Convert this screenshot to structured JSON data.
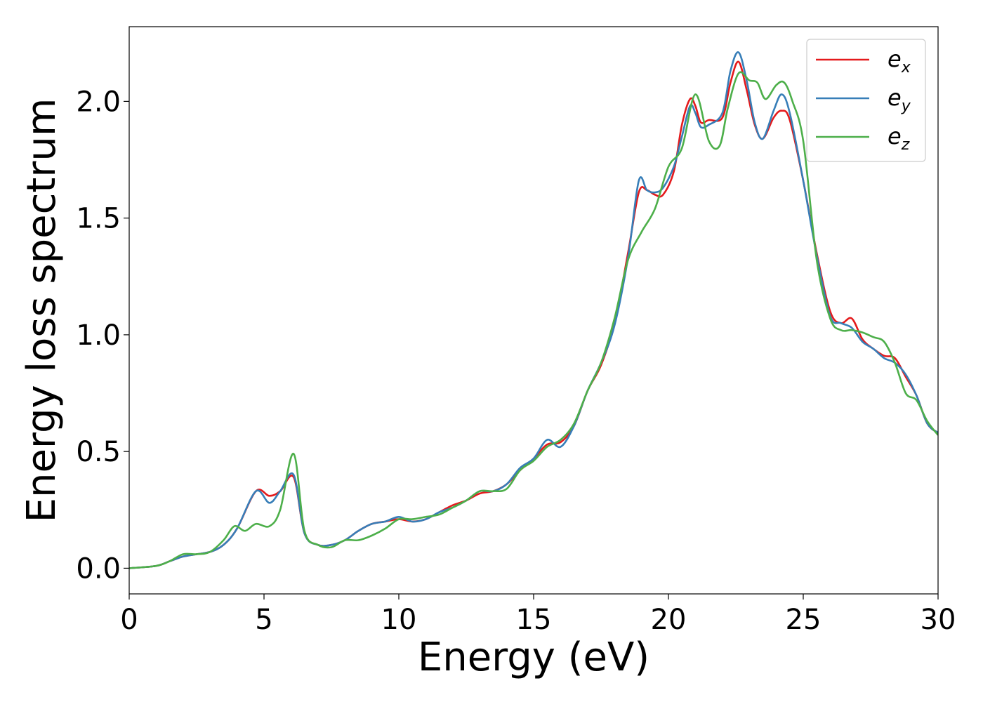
{
  "chart_data": {
    "type": "line",
    "title": "",
    "xlabel": "Energy (eV)",
    "ylabel": "Energy loss spectrum",
    "xlim": [
      0,
      30
    ],
    "ylim": [
      -0.11,
      2.32
    ],
    "xticks": [
      0,
      5,
      10,
      15,
      20,
      25,
      30
    ],
    "xtick_labels": [
      "0",
      "5",
      "10",
      "15",
      "20",
      "25",
      "30"
    ],
    "yticks": [
      0.0,
      0.5,
      1.0,
      1.5,
      2.0
    ],
    "ytick_labels": [
      "0.0",
      "0.5",
      "1.0",
      "1.5",
      "2.0"
    ],
    "grid": false,
    "legend_position": "top-right",
    "series": [
      {
        "name": "e_x",
        "label_base": "e",
        "label_sub": "x",
        "color": "#e41a1c",
        "x": [
          0,
          1,
          1.5,
          2,
          2.5,
          3,
          3.5,
          4,
          4.7,
          5.2,
          5.6,
          6.1,
          6.5,
          7,
          7.5,
          8,
          8.5,
          9,
          9.5,
          10,
          10.5,
          11,
          11.5,
          12,
          12.5,
          13,
          13.5,
          14,
          14.5,
          15,
          15.5,
          16,
          16.5,
          17,
          17.5,
          18,
          18.5,
          18.9,
          19.2,
          19.5,
          19.8,
          20.2,
          20.5,
          20.8,
          21,
          21.2,
          21.5,
          22,
          22.3,
          22.6,
          22.9,
          23.2,
          23.5,
          23.9,
          24.2,
          24.5,
          25,
          25.5,
          26,
          26.4,
          26.8,
          27.2,
          27.6,
          28,
          28.4,
          28.8,
          29.2,
          29.6,
          30
        ],
        "y": [
          0,
          0.01,
          0.03,
          0.05,
          0.06,
          0.07,
          0.1,
          0.17,
          0.33,
          0.31,
          0.33,
          0.39,
          0.15,
          0.1,
          0.1,
          0.12,
          0.16,
          0.19,
          0.2,
          0.21,
          0.2,
          0.21,
          0.24,
          0.27,
          0.29,
          0.32,
          0.33,
          0.36,
          0.42,
          0.47,
          0.53,
          0.54,
          0.61,
          0.76,
          0.87,
          1.05,
          1.35,
          1.61,
          1.62,
          1.6,
          1.6,
          1.7,
          1.9,
          2.01,
          1.98,
          1.91,
          1.92,
          1.93,
          2.08,
          2.17,
          2.05,
          1.9,
          1.84,
          1.93,
          1.96,
          1.92,
          1.66,
          1.35,
          1.1,
          1.05,
          1.07,
          0.98,
          0.94,
          0.91,
          0.9,
          0.82,
          0.74,
          0.62,
          0.58
        ]
      },
      {
        "name": "e_y",
        "label_base": "e",
        "label_sub": "y",
        "color": "#377eb8",
        "x": [
          0,
          1,
          1.5,
          2,
          2.5,
          3,
          3.5,
          4,
          4.7,
          5.2,
          5.6,
          6.1,
          6.5,
          7,
          7.5,
          8,
          8.5,
          9,
          9.5,
          10,
          10.5,
          11,
          11.5,
          12,
          12.5,
          13,
          13.5,
          14,
          14.5,
          15,
          15.5,
          16,
          16.5,
          17,
          17.5,
          18,
          18.5,
          18.9,
          19.2,
          19.5,
          19.8,
          20.2,
          20.5,
          20.8,
          21,
          21.2,
          21.5,
          22,
          22.3,
          22.6,
          22.9,
          23.2,
          23.5,
          23.9,
          24.2,
          24.5,
          25,
          25.5,
          26,
          26.4,
          26.8,
          27.2,
          27.6,
          28,
          28.4,
          28.8,
          29.2,
          29.6,
          30
        ],
        "y": [
          0,
          0.01,
          0.03,
          0.05,
          0.06,
          0.07,
          0.1,
          0.17,
          0.33,
          0.28,
          0.33,
          0.4,
          0.15,
          0.1,
          0.1,
          0.12,
          0.16,
          0.19,
          0.2,
          0.22,
          0.2,
          0.21,
          0.24,
          0.26,
          0.29,
          0.33,
          0.33,
          0.36,
          0.43,
          0.47,
          0.55,
          0.52,
          0.61,
          0.76,
          0.88,
          1.04,
          1.33,
          1.66,
          1.62,
          1.61,
          1.63,
          1.72,
          1.85,
          1.98,
          1.95,
          1.89,
          1.9,
          1.95,
          2.13,
          2.21,
          2.09,
          1.91,
          1.84,
          1.96,
          2.03,
          1.95,
          1.66,
          1.34,
          1.08,
          1.05,
          1.03,
          0.97,
          0.94,
          0.9,
          0.88,
          0.83,
          0.74,
          0.62,
          0.58
        ]
      },
      {
        "name": "e_z",
        "label_base": "e",
        "label_sub": "z",
        "color": "#4daf4a",
        "x": [
          0,
          1,
          1.5,
          2,
          2.5,
          3,
          3.5,
          3.9,
          4.3,
          4.7,
          5.2,
          5.6,
          6.1,
          6.5,
          7,
          7.5,
          8,
          8.5,
          9,
          9.5,
          10,
          10.5,
          11,
          11.5,
          12,
          12.5,
          13,
          13.5,
          14,
          14.5,
          15,
          15.5,
          16,
          16.5,
          17,
          17.5,
          18,
          18.5,
          19,
          19.5,
          20,
          20.5,
          21,
          21.5,
          21.9,
          22.2,
          22.6,
          23,
          23.3,
          23.6,
          24,
          24.3,
          24.6,
          25,
          25.5,
          26,
          26.4,
          26.8,
          27.2,
          27.6,
          28,
          28.4,
          28.8,
          29.2,
          29.6,
          30
        ],
        "y": [
          0,
          0.01,
          0.03,
          0.06,
          0.06,
          0.07,
          0.12,
          0.18,
          0.16,
          0.19,
          0.18,
          0.25,
          0.49,
          0.16,
          0.1,
          0.09,
          0.12,
          0.12,
          0.14,
          0.17,
          0.21,
          0.21,
          0.22,
          0.23,
          0.26,
          0.29,
          0.33,
          0.33,
          0.34,
          0.42,
          0.46,
          0.52,
          0.55,
          0.62,
          0.76,
          0.88,
          1.07,
          1.32,
          1.44,
          1.54,
          1.72,
          1.8,
          2.03,
          1.83,
          1.81,
          1.97,
          2.12,
          2.09,
          2.08,
          2.01,
          2.07,
          2.08,
          2.0,
          1.83,
          1.32,
          1.07,
          1.02,
          1.02,
          1.01,
          0.99,
          0.97,
          0.88,
          0.75,
          0.72,
          0.63,
          0.57
        ]
      }
    ]
  }
}
